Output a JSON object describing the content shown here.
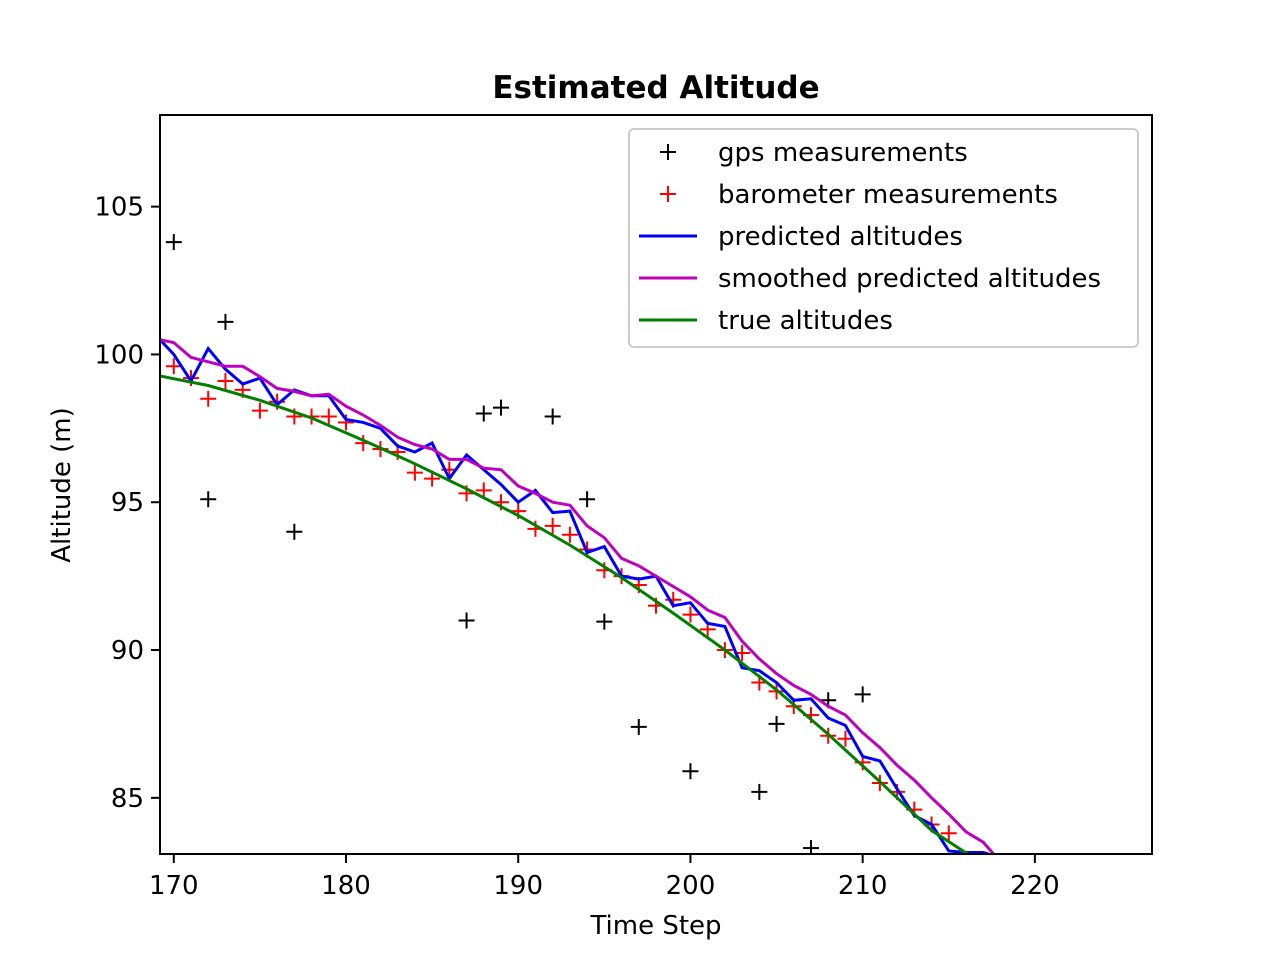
{
  "chart_data": {
    "type": "line",
    "title": "Estimated Altitude",
    "xlabel": "Time Step",
    "ylabel": "Altitude (m)",
    "xlim": [
      169.2,
      226.8
    ],
    "ylim": [
      83.1,
      108.1
    ],
    "xticks": [
      170,
      180,
      190,
      200,
      210,
      220
    ],
    "yticks": [
      85,
      90,
      95,
      100,
      105
    ],
    "grid": false,
    "legend_position": "top-right",
    "colors": {
      "gps": "#000000",
      "barometer": "#ff0000",
      "predicted": "#0000ff",
      "smoothed": "#bf00bf",
      "true": "#008000"
    },
    "series": [
      {
        "name": "gps measurements",
        "kind": "marker",
        "color": "#000000",
        "x": [
          170,
          172,
          173,
          177,
          187,
          188,
          189,
          192,
          194,
          195,
          197,
          200,
          204,
          205,
          207,
          208,
          210
        ],
        "y": [
          103.8,
          95.1,
          101.1,
          94.0,
          91.0,
          98.0,
          98.2,
          97.9,
          95.1,
          90.96,
          87.4,
          85.9,
          85.2,
          87.5,
          83.3,
          88.3,
          88.5
        ]
      },
      {
        "name": "barometer measurements",
        "kind": "marker",
        "color": "#ff0000",
        "x": [
          170,
          171,
          172,
          173,
          174,
          175,
          176,
          177,
          178,
          179,
          180,
          181,
          182,
          183,
          184,
          185,
          186,
          187,
          188,
          189,
          190,
          191,
          192,
          193,
          194,
          195,
          196,
          197,
          198,
          199,
          200,
          201,
          202,
          203,
          204,
          205,
          206,
          207,
          208,
          209,
          210,
          211,
          212,
          213,
          214,
          215
        ],
        "y": [
          99.6,
          99.2,
          98.5,
          99.1,
          98.8,
          98.1,
          98.4,
          97.9,
          97.9,
          97.9,
          97.7,
          97.0,
          96.8,
          96.7,
          96.0,
          95.8,
          96.1,
          95.3,
          95.4,
          95.0,
          94.7,
          94.1,
          94.2,
          93.9,
          93.4,
          92.7,
          92.5,
          92.2,
          91.5,
          91.7,
          91.2,
          90.7,
          90.0,
          89.9,
          88.9,
          88.6,
          88.1,
          87.8,
          87.1,
          87.0,
          86.2,
          85.5,
          85.2,
          84.6,
          84.1,
          83.8
        ]
      },
      {
        "name": "predicted altitudes",
        "kind": "line",
        "color": "#0000ff",
        "x": [
          169.2,
          170,
          171,
          172,
          173,
          174,
          175,
          176,
          177,
          178,
          179,
          180,
          181,
          182,
          183,
          184,
          185,
          186,
          187,
          188,
          189,
          190,
          191,
          192,
          193,
          194,
          195,
          196,
          197,
          198,
          199,
          200,
          201,
          202,
          203,
          204,
          205,
          206,
          207,
          208,
          209,
          210,
          211,
          212,
          213,
          214,
          215,
          216,
          217,
          217.3
        ],
        "y": [
          100.5,
          100.0,
          99.1,
          100.2,
          99.5,
          99.0,
          99.2,
          98.3,
          98.8,
          98.6,
          98.6,
          97.8,
          97.7,
          97.5,
          96.9,
          96.7,
          97.0,
          95.8,
          96.6,
          96.1,
          95.6,
          95.0,
          95.4,
          94.65,
          94.7,
          93.3,
          93.5,
          92.5,
          92.4,
          92.5,
          91.5,
          91.6,
          90.9,
          90.8,
          89.4,
          89.3,
          88.9,
          88.3,
          88.35,
          87.7,
          87.45,
          86.4,
          86.25,
          85.3,
          84.4,
          84.1,
          83.2,
          83.15,
          83.15,
          83.1
        ]
      },
      {
        "name": "smoothed predicted altitudes",
        "kind": "line",
        "color": "#bf00bf",
        "x": [
          169.2,
          170,
          171,
          172,
          173,
          174,
          175,
          176,
          177,
          178,
          179,
          180,
          181,
          182,
          183,
          184,
          185,
          186,
          187,
          188,
          189,
          190,
          191,
          192,
          193,
          194,
          195,
          196,
          197,
          198,
          199,
          200,
          201,
          202,
          203,
          204,
          205,
          206,
          207,
          208,
          209,
          210,
          211,
          212,
          213,
          214,
          215,
          216,
          217,
          217.6
        ],
        "y": [
          100.5,
          100.4,
          99.9,
          99.75,
          99.6,
          99.6,
          99.25,
          98.85,
          98.75,
          98.6,
          98.65,
          98.25,
          97.95,
          97.6,
          97.2,
          96.95,
          96.8,
          96.45,
          96.45,
          96.15,
          96.1,
          95.55,
          95.3,
          95.0,
          94.9,
          94.2,
          93.8,
          93.1,
          92.85,
          92.5,
          92.15,
          91.8,
          91.35,
          91.1,
          90.3,
          89.7,
          89.2,
          88.8,
          88.5,
          88.1,
          87.8,
          87.2,
          86.7,
          86.1,
          85.6,
          85.0,
          84.45,
          83.85,
          83.5,
          83.1
        ]
      },
      {
        "name": "true altitudes",
        "kind": "line",
        "color": "#008000",
        "x": [
          169.2,
          172,
          175,
          178,
          181,
          184,
          187,
          190,
          193,
          196,
          199,
          202,
          205,
          208,
          211,
          214,
          216.1
        ],
        "y": [
          99.27,
          98.95,
          98.45,
          97.85,
          97.1,
          96.3,
          95.45,
          94.55,
          93.55,
          92.45,
          91.25,
          90.0,
          88.65,
          87.15,
          85.55,
          83.9,
          83.1
        ]
      }
    ]
  }
}
